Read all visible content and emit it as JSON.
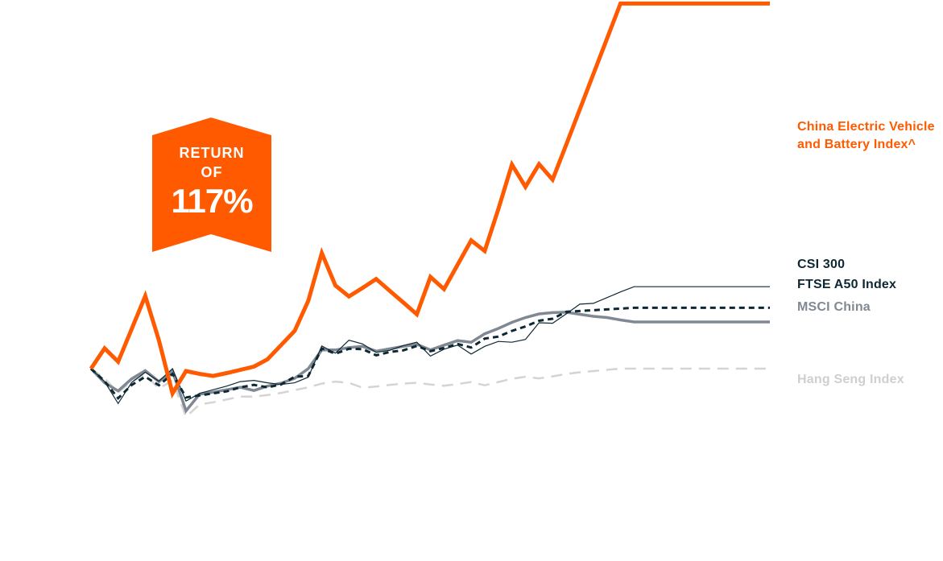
{
  "badge": {
    "line1": "RETURN",
    "line2": "OF",
    "value": "117%",
    "color": "#ff5a00"
  },
  "chart_data": {
    "type": "line",
    "title": "",
    "xlabel": "",
    "ylabel": "",
    "grid": false,
    "legend": "right",
    "x": [
      0,
      1,
      2,
      3,
      4,
      5,
      6,
      7,
      8,
      9,
      10,
      11,
      12,
      13,
      14,
      15,
      16,
      17,
      18,
      19,
      20,
      21,
      22,
      23,
      24,
      25,
      26,
      27,
      28,
      29,
      30,
      31,
      32,
      33,
      34,
      35,
      36,
      37,
      38,
      39,
      40,
      41,
      42,
      43,
      44,
      45,
      46,
      47,
      48,
      49,
      50
    ],
    "ylim": [
      -20,
      90
    ],
    "series": [
      {
        "name": "China Electric Vehicle and Battery Index^",
        "label_lines": [
          "China Electric Vehicle",
          "and Battery Index^"
        ],
        "color": "#ff5a00",
        "style": "solid",
        "width": 5,
        "values": [
          0.0,
          5.0,
          1.7,
          9.8,
          17.9,
          7.0,
          -6.1,
          -0.6,
          -1.3,
          -1.8,
          -1.1,
          -0.3,
          0.5,
          2.3,
          5.8,
          9.3,
          16.7,
          28.5,
          20.5,
          17.8,
          19.9,
          22.1,
          19.2,
          16.3,
          13.4,
          22.6,
          19.6,
          25.6,
          31.6,
          29.0,
          39.3,
          50.3,
          44.8,
          50.4,
          46.6,
          55.2,
          63.9,
          72.6,
          81.3,
          90.0,
          90.0,
          90.0,
          90.0,
          90.0,
          90.0,
          90.0,
          90.0,
          90.0,
          90.0,
          90.0,
          90.0
        ]
      },
      {
        "name": "CSI 300",
        "color": "#0d2833",
        "style": "solid",
        "width": 1.2,
        "values": [
          0.0,
          -3.2,
          -8.6,
          -3.4,
          -0.9,
          -3.1,
          0.0,
          -8.0,
          -6.1,
          -5.2,
          -4.3,
          -3.2,
          -2.9,
          -3.5,
          -3.9,
          -3.5,
          -2.1,
          5.6,
          3.8,
          7.0,
          6.1,
          4.0,
          4.5,
          5.7,
          6.5,
          3.1,
          4.8,
          5.8,
          3.6,
          5.5,
          6.7,
          6.5,
          7.2,
          11.3,
          11.2,
          13.5,
          15.9,
          16.1,
          17.5,
          18.9,
          20.2,
          20.2,
          20.2,
          20.2,
          20.2,
          20.2,
          20.2,
          20.2,
          20.2,
          20.2,
          20.2
        ]
      },
      {
        "name": "FTSE A50 Index",
        "color": "#0d2833",
        "style": "dashed",
        "width": 3,
        "values": [
          0.0,
          -3.1,
          -7.3,
          -4.0,
          -2.0,
          -4.1,
          -1.3,
          -7.1,
          -6.6,
          -6.1,
          -5.6,
          -4.6,
          -4.0,
          -4.6,
          -3.9,
          -2.0,
          -1.8,
          5.0,
          3.7,
          4.9,
          4.8,
          3.3,
          4.1,
          4.5,
          5.6,
          4.3,
          5.1,
          6.1,
          5.2,
          7.4,
          7.9,
          9.3,
          10.4,
          11.8,
          12.3,
          14.0,
          14.2,
          14.4,
          14.6,
          14.8,
          15.0,
          15.0,
          15.0,
          15.0,
          15.0,
          15.0,
          15.0,
          15.0,
          15.0,
          15.0,
          15.0
        ]
      },
      {
        "name": "MSCI China",
        "color": "#808993",
        "style": "solid",
        "width": 3.5,
        "values": [
          0.0,
          -3.5,
          -5.5,
          -2.5,
          -0.5,
          -3.2,
          -0.6,
          -10.4,
          -6.3,
          -5.8,
          -5.2,
          -4.6,
          -5.4,
          -4.3,
          -3.6,
          -2.4,
          0.0,
          4.6,
          4.6,
          5.2,
          5.5,
          4.3,
          4.9,
          5.5,
          6.0,
          4.6,
          5.8,
          6.9,
          6.5,
          8.6,
          9.9,
          11.4,
          12.6,
          13.5,
          13.8,
          13.9,
          13.4,
          12.9,
          12.6,
          12.0,
          11.5,
          11.5,
          11.5,
          11.5,
          11.5,
          11.5,
          11.5,
          11.5,
          11.5,
          11.5,
          11.5
        ]
      },
      {
        "name": "Hang Seng Index",
        "color": "#d4d4d4",
        "style": "dashed",
        "width": 2.5,
        "values": [
          0.0,
          -2.4,
          -5.9,
          -3.1,
          -1.5,
          -4.9,
          -2.9,
          -11.9,
          -8.8,
          -8.3,
          -7.6,
          -6.9,
          -6.9,
          -6.5,
          -6.0,
          -5.3,
          -4.6,
          -3.7,
          -3.2,
          -3.5,
          -4.7,
          -4.4,
          -4.0,
          -3.7,
          -3.5,
          -3.9,
          -4.2,
          -3.8,
          -3.3,
          -4.1,
          -3.3,
          -2.5,
          -2.0,
          -2.4,
          -1.9,
          -1.3,
          -0.9,
          -0.6,
          -0.3,
          0.0,
          0.0,
          0.0,
          0.0,
          0.0,
          0.0,
          0.0,
          0.0,
          0.0,
          0.0,
          0.0,
          0.0
        ]
      }
    ]
  }
}
